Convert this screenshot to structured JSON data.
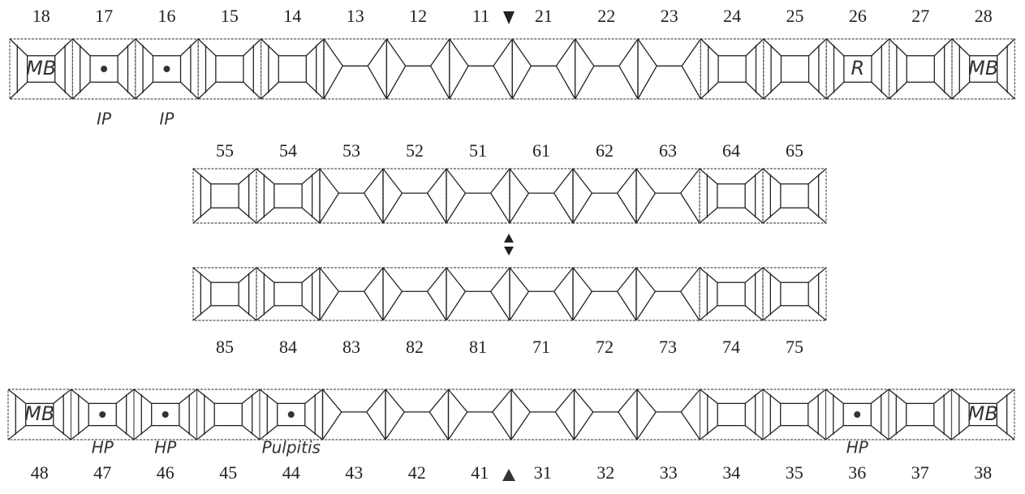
{
  "rows": [
    {
      "teeth": [
        18,
        17,
        16,
        15,
        14,
        13,
        12,
        11,
        21,
        22,
        23,
        24,
        25,
        26,
        27,
        28
      ],
      "inside": [
        "MB",
        null,
        null,
        null,
        null,
        null,
        null,
        null,
        null,
        null,
        null,
        null,
        null,
        "R",
        null,
        "MB"
      ],
      "below": [
        null,
        "IP",
        "IP",
        null,
        null,
        null,
        null,
        null,
        null,
        null,
        null,
        null,
        null,
        null,
        null,
        null
      ]
    },
    {
      "teeth": [
        55,
        54,
        53,
        52,
        51,
        61,
        62,
        63,
        64,
        65
      ]
    },
    {
      "teeth": [
        85,
        84,
        83,
        82,
        81,
        71,
        72,
        73,
        74,
        75
      ]
    },
    {
      "teeth": [
        48,
        47,
        46,
        45,
        44,
        43,
        42,
        41,
        31,
        32,
        33,
        34,
        35,
        36,
        37,
        38
      ],
      "inside": [
        "MB",
        null,
        null,
        null,
        null,
        null,
        null,
        null,
        null,
        null,
        null,
        null,
        null,
        null,
        null,
        "MB"
      ],
      "below": [
        null,
        "HP",
        "HP",
        null,
        "Pulpitis",
        null,
        null,
        null,
        null,
        null,
        null,
        null,
        null,
        "HP",
        null,
        null
      ]
    }
  ]
}
